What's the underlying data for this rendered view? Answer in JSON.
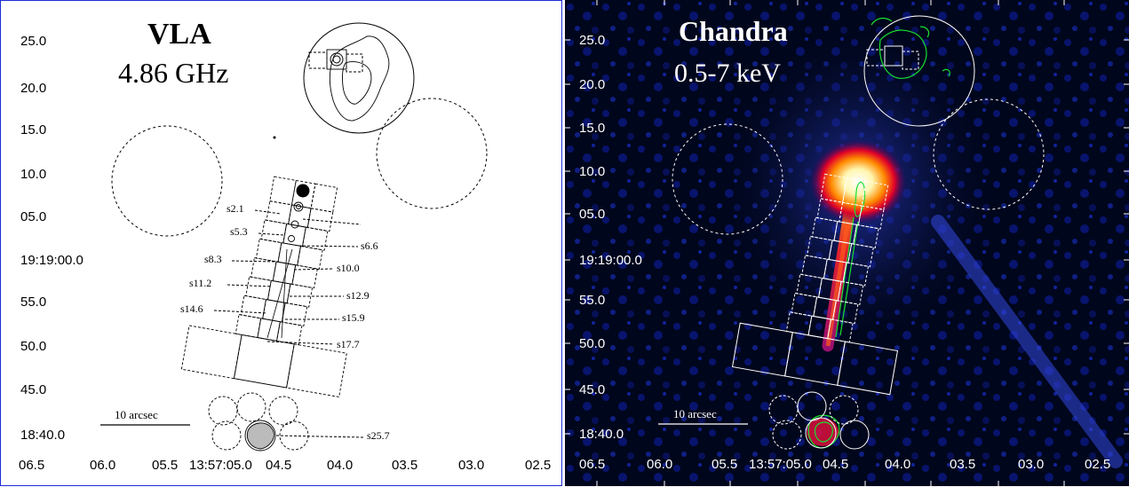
{
  "left": {
    "title": "VLA",
    "subtitle": "4.86 GHz",
    "scalebar": "10 arcsec",
    "yticks": [
      "25.0",
      "20.0",
      "15.0",
      "10.0",
      "05.0",
      "19:19:00.0",
      "55.0",
      "50.0",
      "45.0",
      "18:40.0"
    ],
    "xticks": [
      "06.5",
      "06.0",
      "05.5",
      "13:57:05.0",
      "04.5",
      "04.0",
      "03.5",
      "03.0",
      "02.5"
    ],
    "regions": [
      "s2.1",
      "s5.3",
      "s6.6",
      "s8.3",
      "s10.0",
      "s11.2",
      "s12.9",
      "s14.6",
      "s15.9",
      "s17.7",
      "s25.7"
    ]
  },
  "right": {
    "title": "Chandra",
    "subtitle": "0.5-7 keV",
    "scalebar": "10 arcsec",
    "yticks": [
      "25.0",
      "20.0",
      "15.0",
      "10.0",
      "05.0",
      "19:19:00.0",
      "55.0",
      "50.0",
      "45.0",
      "18:40.0"
    ],
    "xticks": [
      "06.5",
      "06.0",
      "05.5",
      "13:57:05.0",
      "04.5",
      "04.0",
      "03.5",
      "03.0",
      "02.5"
    ]
  },
  "colors": {
    "border": "#1a2cd8",
    "background_xray": "#00061c",
    "contour": "#18e030"
  }
}
